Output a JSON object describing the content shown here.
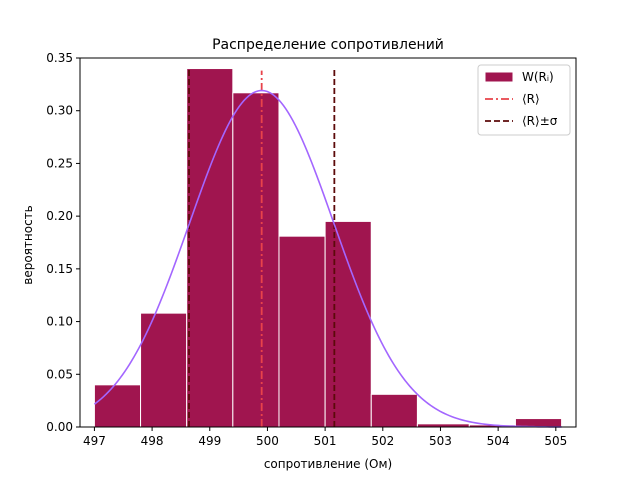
{
  "chart_data": {
    "type": "bar",
    "title": "Распределение сопротивлений",
    "xlabel": "сопротивление (Ом)",
    "ylabel": "вероятность",
    "xlim": [
      496.75,
      505.35
    ],
    "ylim": [
      0.0,
      0.35
    ],
    "xticks": [
      "497",
      "498",
      "499",
      "500",
      "501",
      "502",
      "503",
      "504",
      "505"
    ],
    "yticks": [
      "0.00",
      "0.05",
      "0.10",
      "0.15",
      "0.20",
      "0.25",
      "0.30",
      "0.35"
    ],
    "bins": [
      {
        "x0": 497.0,
        "x1": 497.8,
        "value": 0.04
      },
      {
        "x0": 497.8,
        "x1": 498.6,
        "value": 0.108
      },
      {
        "x0": 498.6,
        "x1": 499.4,
        "value": 0.34
      },
      {
        "x0": 499.4,
        "x1": 500.2,
        "value": 0.317
      },
      {
        "x0": 500.2,
        "x1": 501.0,
        "value": 0.181
      },
      {
        "x0": 501.0,
        "x1": 501.8,
        "value": 0.195
      },
      {
        "x0": 501.8,
        "x1": 502.6,
        "value": 0.031
      },
      {
        "x0": 502.6,
        "x1": 503.5,
        "value": 0.003
      },
      {
        "x0": 503.5,
        "x1": 504.3,
        "value": 0.002
      },
      {
        "x0": 504.3,
        "x1": 505.1,
        "value": 0.008
      }
    ],
    "normal_fit": {
      "mean": 499.9,
      "sigma": 1.25,
      "x_range": [
        497.0,
        505.1
      ]
    },
    "mean_line": {
      "x": 499.9,
      "y_top": 0.338
    },
    "sigma_lines": [
      {
        "x": 498.64,
        "y_top": 0.34
      },
      {
        "x": 501.16,
        "y_top": 0.34
      }
    ],
    "legend": {
      "position": "top-right",
      "items": [
        {
          "label": "W(Rᵢ)",
          "kind": "patch"
        },
        {
          "label": "⟨R⟩",
          "kind": "dashdot"
        },
        {
          "label": "⟨R⟩±σ",
          "kind": "dashed"
        }
      ]
    },
    "colors": {
      "bar": "#a0154f",
      "bar_edge": "#ffffff",
      "curve": "#a366ff",
      "mean": "#e8434a",
      "sigma": "#5c0a0a"
    },
    "grid": false
  }
}
